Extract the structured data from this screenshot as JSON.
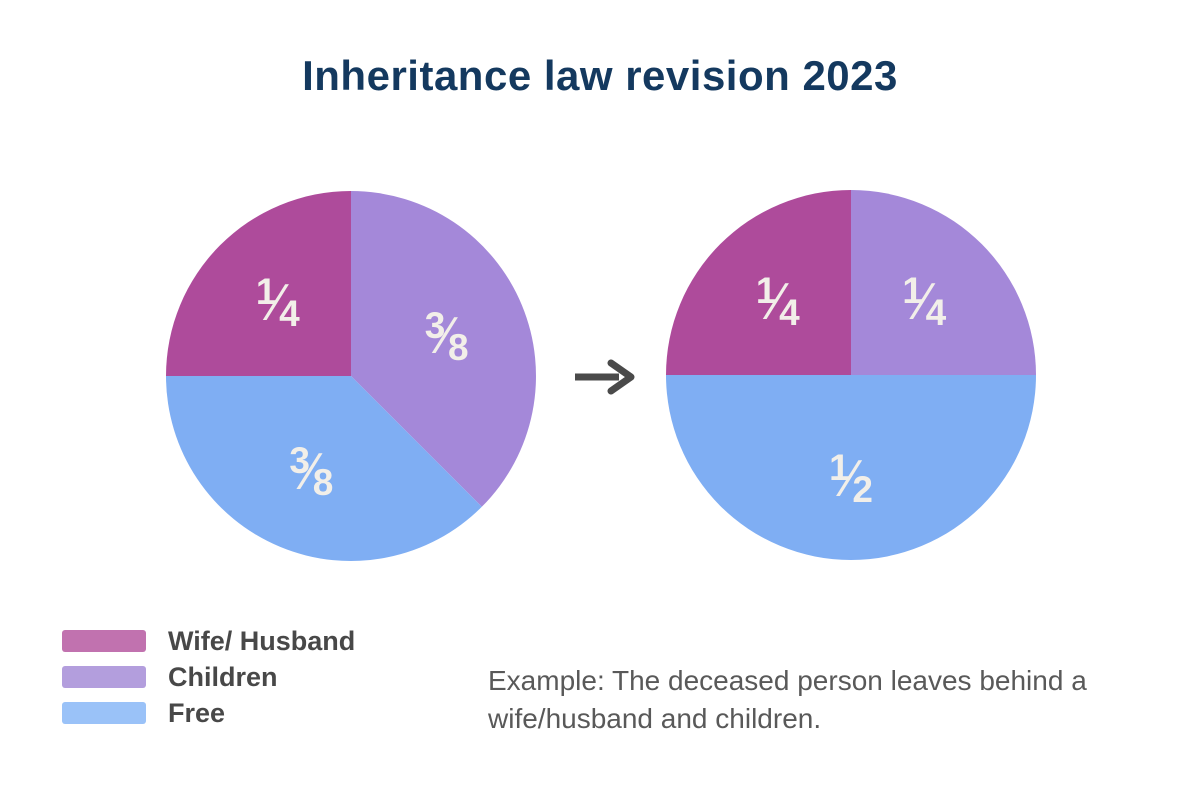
{
  "title": "Inheritance law revision 2023",
  "colors": {
    "title": "#14395F",
    "pie_wife_husband": "#AE4B9B",
    "pie_children": "#A488D9",
    "pie_free": "#7FAEF3",
    "legend_wife_husband": "#C172AF",
    "legend_children": "#B39EDD",
    "legend_free": "#9AC2F8",
    "fraction_text": "#F2EFE9",
    "arrow": "#4A4A4A",
    "legend_text": "#484848",
    "example_text": "#595959",
    "background": "#FFFFFF"
  },
  "chart_data": [
    {
      "type": "pie",
      "name": "before_revision",
      "start_angle_deg": 0,
      "direction": "clockwise",
      "label_radius_ratio": 0.56,
      "slices": [
        {
          "category": "Children",
          "value": 0.375,
          "fraction": {
            "num": "3",
            "den": "8"
          },
          "color": "#A488D9"
        },
        {
          "category": "Free",
          "value": 0.375,
          "fraction": {
            "num": "3",
            "den": "8"
          },
          "color": "#7FAEF3"
        },
        {
          "category": "Wife/ Husband",
          "value": 0.25,
          "fraction": {
            "num": "1",
            "den": "4"
          },
          "color": "#AE4B9B"
        }
      ]
    },
    {
      "type": "pie",
      "name": "after_revision",
      "start_angle_deg": 0,
      "direction": "clockwise",
      "label_radius_ratio": 0.56,
      "slices": [
        {
          "category": "Children",
          "value": 0.25,
          "fraction": {
            "num": "1",
            "den": "4"
          },
          "color": "#A488D9"
        },
        {
          "category": "Free",
          "value": 0.5,
          "fraction": {
            "num": "1",
            "den": "2"
          },
          "color": "#7FAEF3"
        },
        {
          "category": "Wife/ Husband",
          "value": 0.25,
          "fraction": {
            "num": "1",
            "den": "4"
          },
          "color": "#AE4B9B"
        }
      ]
    }
  ],
  "legend": [
    {
      "label": "Wife/ Husband",
      "color": "#C172AF"
    },
    {
      "label": "Children",
      "color": "#B39EDD"
    },
    {
      "label": "Free",
      "color": "#9AC2F8"
    }
  ],
  "example": {
    "text": "Example: The deceased person leaves behind a wife/husband and children."
  },
  "arrow": {
    "glyph": "right-arrow"
  }
}
